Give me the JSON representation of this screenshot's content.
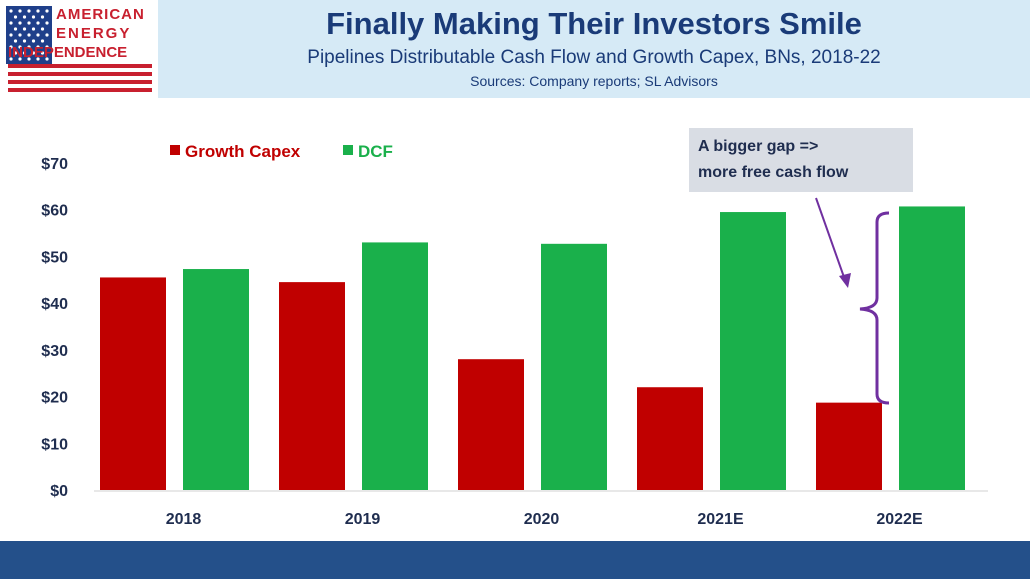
{
  "logo": {
    "line1": "AMERICAN",
    "line2": "ENERGY",
    "line3": "INDEPENDENCE",
    "icon": "us-flag-icon"
  },
  "header": {
    "title": "Finally Making Their Investors Smile",
    "subtitle": "Pipelines Distributable Cash Flow and Growth Capex, BNs, 2018-22",
    "sources": "Sources: Company reports; SL Advisors"
  },
  "annotation": {
    "line1": "A bigger gap =>",
    "line2": "more free cash flow"
  },
  "colors": {
    "capex": "#c00000",
    "dcf": "#1ab04b",
    "title": "#1a3b78",
    "bracket": "#7030a0",
    "footer": "#24508a"
  },
  "chart_data": {
    "type": "bar",
    "categories": [
      "2018",
      "2019",
      "2020",
      "2021E",
      "2022E"
    ],
    "series": [
      {
        "name": "Growth Capex",
        "values": [
          45.5,
          44.5,
          28,
          22,
          18.7
        ]
      },
      {
        "name": "DCF",
        "values": [
          47.3,
          53,
          52.7,
          59.5,
          60.7
        ]
      }
    ],
    "ylim": [
      0,
      70
    ],
    "yticks": [
      "$0",
      "$10",
      "$20",
      "$30",
      "$40",
      "$50",
      "$60",
      "$70"
    ],
    "ytick_values": [
      0,
      10,
      20,
      30,
      40,
      50,
      60,
      70
    ],
    "grid": false,
    "legend": "top-left"
  }
}
